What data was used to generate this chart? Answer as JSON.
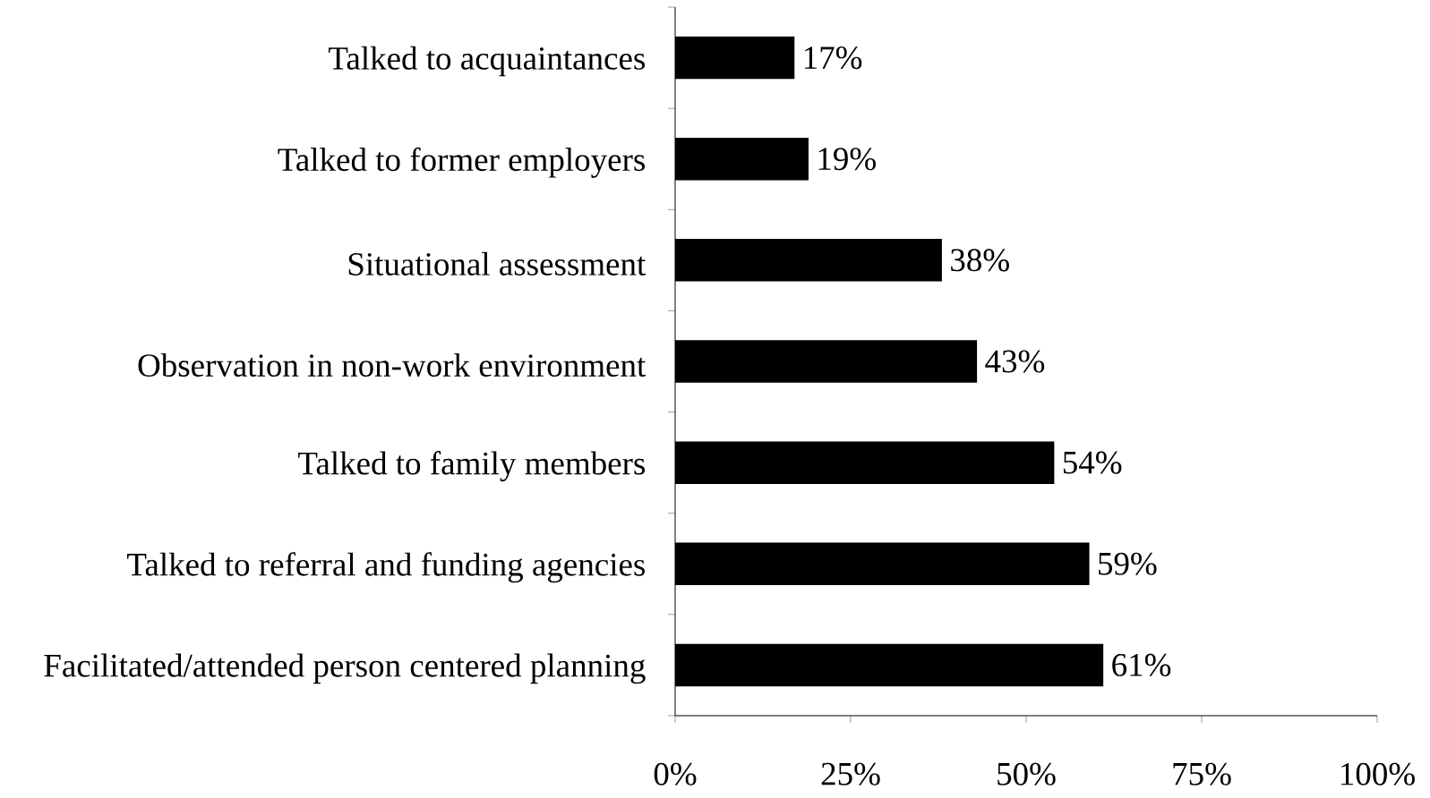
{
  "chart_data": {
    "type": "bar",
    "orientation": "horizontal",
    "categories": [
      "Talked to acquaintances",
      "Talked to former employers",
      "Situational assessment",
      "Observation in non-work environment",
      "Talked to family members",
      "Talked to referral and funding agencies",
      "Facilitated/attended person centered planning"
    ],
    "values": [
      17,
      19,
      38,
      43,
      54,
      59,
      61
    ],
    "value_labels": [
      "17%",
      "19%",
      "38%",
      "43%",
      "54%",
      "59%",
      "61%"
    ],
    "color": "#000000",
    "xlim": [
      0,
      100
    ],
    "xticks": [
      {
        "value": 0,
        "label": "0%"
      },
      {
        "value": 25,
        "label": "25%"
      },
      {
        "value": 50,
        "label": "50%"
      },
      {
        "value": 75,
        "label": "75%"
      },
      {
        "value": 100,
        "label": "100%"
      }
    ],
    "grid": false
  }
}
